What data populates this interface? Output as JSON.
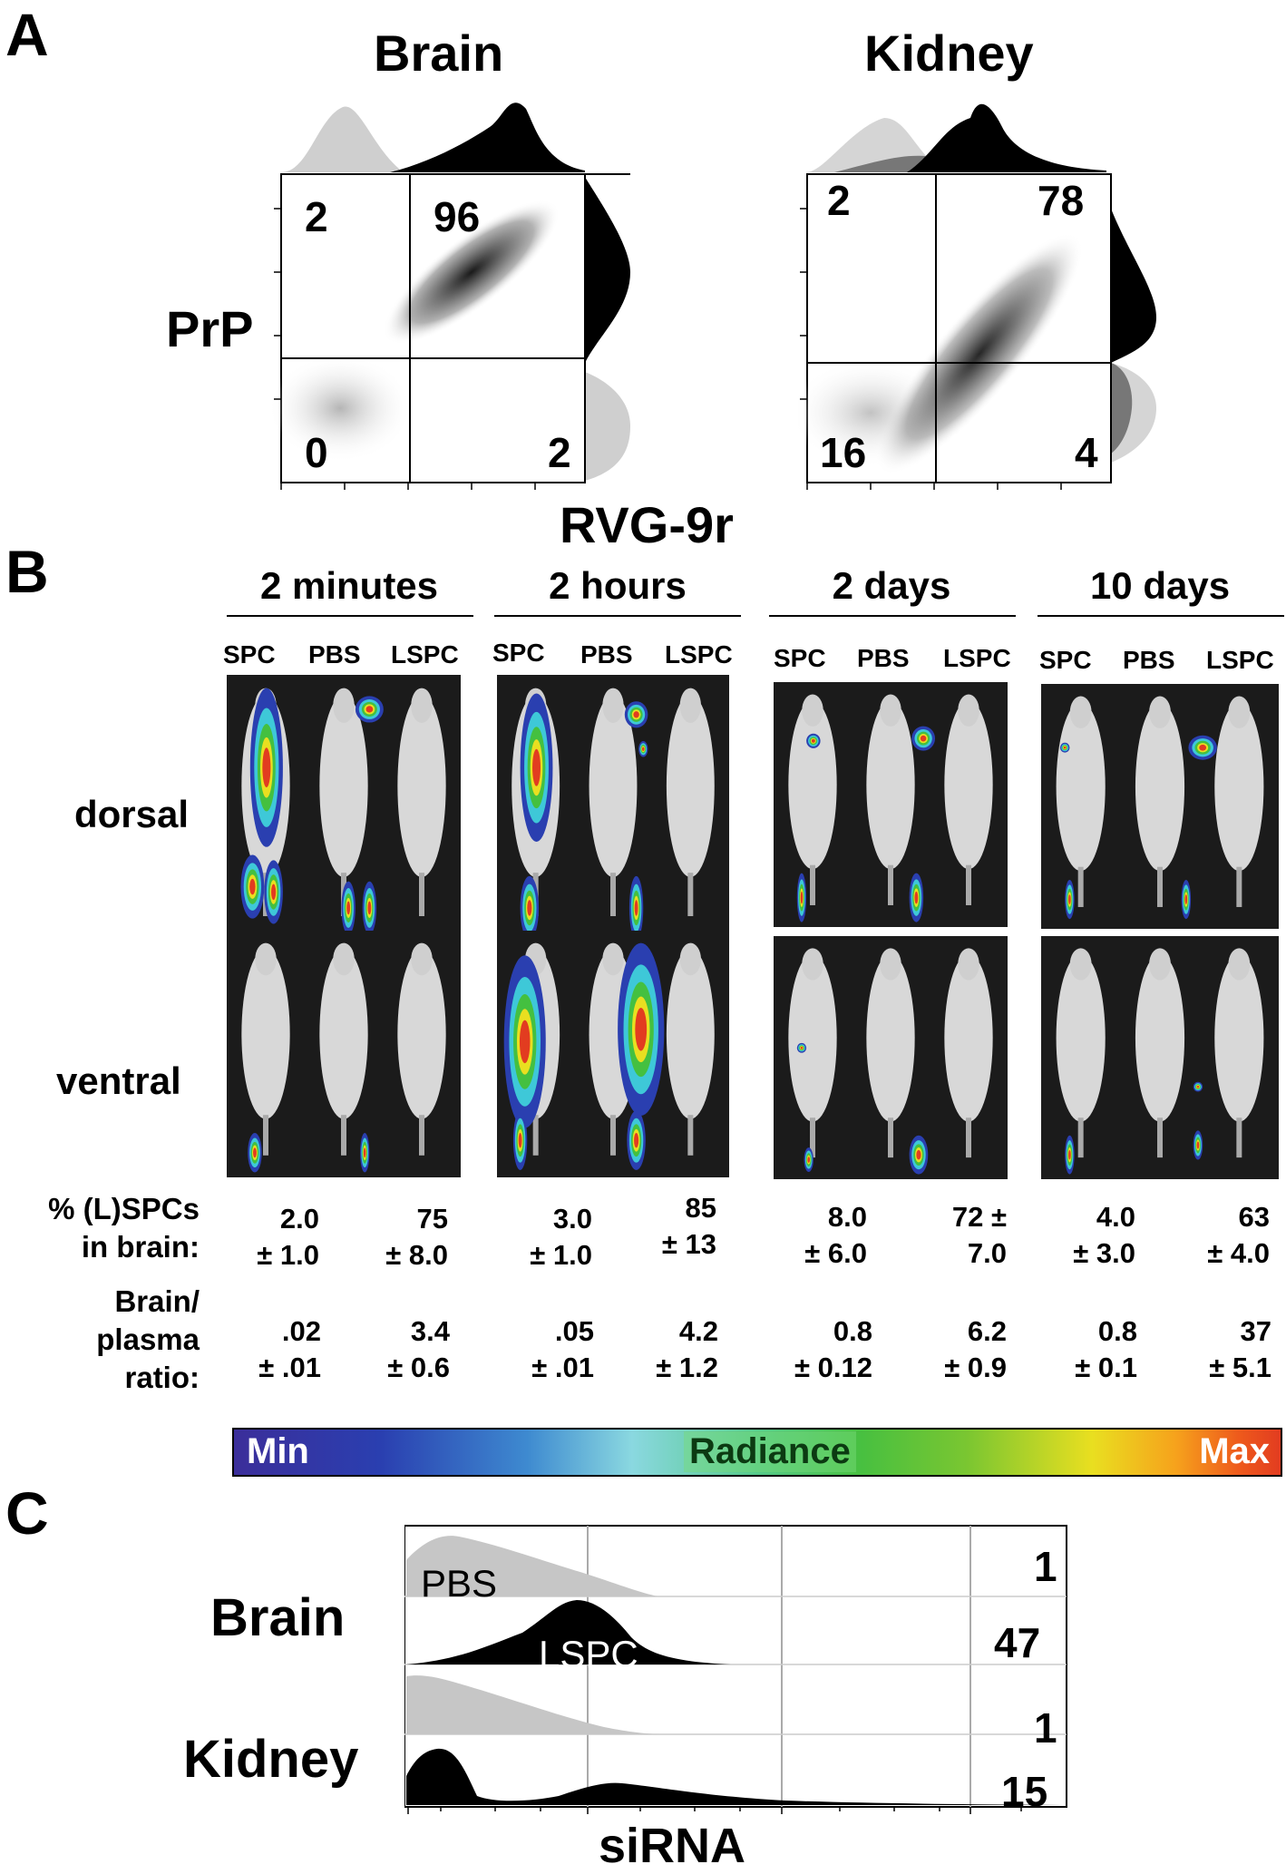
{
  "panel_a": {
    "letter": "A",
    "brain": {
      "title": "Brain",
      "q_ul": "2",
      "q_ur": "96",
      "q_ll": "0",
      "q_lr": "2"
    },
    "kidney": {
      "title": "Kidney",
      "q_ul": "2",
      "q_ur": "78",
      "q_ll": "16",
      "q_lr": "4"
    },
    "y_label": "PrP",
    "x_label": "RVG-9r"
  },
  "panel_b": {
    "letter": "B",
    "timepoints": [
      {
        "label": "2 minutes",
        "groups": [
          "SPC",
          "PBS",
          "LSPC"
        ]
      },
      {
        "label": "2 hours",
        "groups": [
          "SPC",
          "PBS",
          "LSPC"
        ]
      },
      {
        "label": "2 days",
        "groups": [
          "SPC",
          "PBS",
          "LSPC"
        ]
      },
      {
        "label": "10 days",
        "groups": [
          "SPC",
          "PBS",
          "LSPC"
        ]
      }
    ],
    "row_dorsal": "dorsal",
    "row_ventral": "ventral",
    "pct_label_1": "% (L)SPCs",
    "pct_label_2": "in brain:",
    "pct_values": [
      {
        "l1": "2.0",
        "l2": "± 1.0"
      },
      {
        "l1": "75",
        "l2": "± 8.0"
      },
      {
        "l1": "3.0",
        "l2": "± 1.0"
      },
      {
        "l1": "85",
        "l2": "± 13"
      },
      {
        "l1": "8.0",
        "l2": "± 6.0"
      },
      {
        "l1": "72 ±",
        "l2": "7.0"
      },
      {
        "l1": "4.0",
        "l2": "± 3.0"
      },
      {
        "l1": "63",
        "l2": "± 4.0"
      }
    ],
    "ratio_label_1": "Brain/",
    "ratio_label_2": "plasma",
    "ratio_label_3": "ratio:",
    "ratio_values": [
      {
        "l1": ".02",
        "l2": "± .01"
      },
      {
        "l1": "3.4",
        "l2": "± 0.6"
      },
      {
        "l1": ".05",
        "l2": "± .01"
      },
      {
        "l1": "4.2",
        "l2": "± 1.2"
      },
      {
        "l1": "0.8",
        "l2": "± 0.12"
      },
      {
        "l1": "6.2",
        "l2": "± 0.9"
      },
      {
        "l1": "0.8",
        "l2": "± 0.1"
      },
      {
        "l1": "37",
        "l2": "± 5.1"
      }
    ],
    "colorbar": {
      "min": "Min",
      "label": "Radiance",
      "max": "Max"
    }
  },
  "panel_c": {
    "letter": "C",
    "brain_label": "Brain",
    "kidney_label": "Kidney",
    "pbs_label": "PBS",
    "lspc_label": "LSPC",
    "values": [
      "1",
      "47",
      "1",
      "15"
    ],
    "x_label": "siRNA"
  }
}
